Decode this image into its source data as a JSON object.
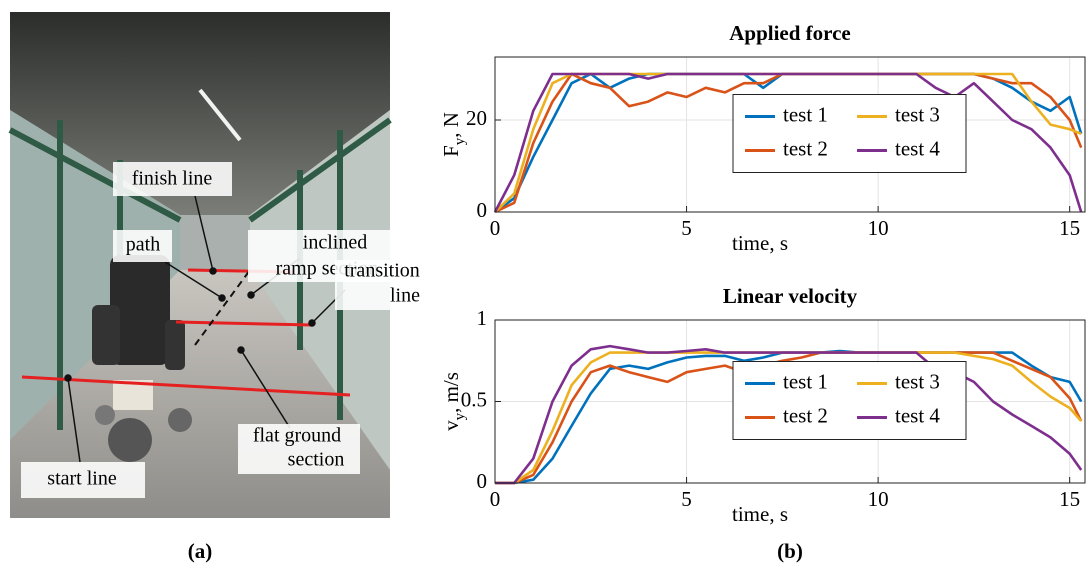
{
  "photo": {
    "labels": [
      {
        "lines": [
          "finish line"
        ]
      },
      {
        "lines": [
          "inclined",
          "ramp section"
        ]
      },
      {
        "lines": [
          "path"
        ]
      },
      {
        "lines": [
          "transition",
          "line"
        ]
      },
      {
        "lines": [
          "flat ground",
          "section"
        ]
      },
      {
        "lines": [
          "start line"
        ]
      }
    ]
  },
  "captions": [
    "(a)",
    "(b)"
  ],
  "chart_data": [
    {
      "type": "line",
      "title": "Applied force",
      "xlabel": "time, s",
      "ylabel": [
        "F",
        "y",
        ", N"
      ],
      "x": [
        0,
        0.5,
        1,
        1.5,
        2,
        2.5,
        3,
        3.5,
        4,
        4.5,
        5,
        5.5,
        6,
        6.5,
        7,
        7.5,
        8,
        8.5,
        9,
        9.5,
        10,
        10.5,
        11,
        11.5,
        12,
        12.5,
        13,
        13.5,
        14,
        14.5,
        15,
        15.3
      ],
      "xlim": [
        0,
        15.4
      ],
      "xticks": [
        0,
        5,
        10,
        15
      ],
      "ylim": [
        0,
        33.7
      ],
      "yticks": [
        0,
        20
      ],
      "grid": true,
      "series": [
        {
          "name": "test 1",
          "color": "#0072bd",
          "values": [
            0,
            3,
            12,
            20,
            28,
            30,
            27,
            29,
            30,
            30,
            30,
            30,
            30,
            30,
            27,
            30,
            30,
            30,
            30,
            30,
            30,
            30,
            30,
            30,
            30,
            30,
            29,
            27,
            24,
            22,
            25,
            17
          ]
        },
        {
          "name": "test 2",
          "color": "#d95319",
          "values": [
            0,
            2,
            15,
            24,
            30,
            28,
            27,
            23,
            24,
            26,
            25,
            27,
            26,
            28,
            28,
            30,
            30,
            30,
            30,
            30,
            30,
            30,
            30,
            30,
            30,
            30,
            29,
            28,
            28,
            25,
            20,
            14
          ]
        },
        {
          "name": "test 3",
          "color": "#edb120",
          "values": [
            0,
            4,
            18,
            28,
            30,
            30,
            30,
            30,
            30,
            30,
            30,
            30,
            30,
            30,
            30,
            30,
            30,
            30,
            30,
            30,
            30,
            30,
            30,
            30,
            30,
            30,
            30,
            30,
            24,
            19,
            18,
            17
          ]
        },
        {
          "name": "test 4",
          "color": "#7e2f8e",
          "values": [
            0,
            8,
            22,
            30,
            30,
            30,
            30,
            30,
            29,
            30,
            30,
            30,
            30,
            30,
            30,
            30,
            30,
            30,
            30,
            30,
            30,
            30,
            30,
            27,
            25,
            28,
            24,
            20,
            18,
            14,
            8,
            0
          ]
        }
      ]
    },
    {
      "type": "line",
      "title": "Linear velocity",
      "xlabel": "time, s",
      "ylabel": [
        "v",
        "y",
        ", m/s"
      ],
      "x": [
        0,
        0.5,
        1,
        1.5,
        2,
        2.5,
        3,
        3.5,
        4,
        4.5,
        5,
        5.5,
        6,
        6.5,
        7,
        7.5,
        8,
        8.5,
        9,
        9.5,
        10,
        10.5,
        11,
        11.5,
        12,
        12.5,
        13,
        13.5,
        14,
        14.5,
        15,
        15.3
      ],
      "xlim": [
        0,
        15.4
      ],
      "xticks": [
        0,
        5,
        10,
        15
      ],
      "ylim": [
        0,
        1
      ],
      "yticks": [
        0,
        0.5,
        1
      ],
      "grid": true,
      "series": [
        {
          "name": "test 1",
          "color": "#0072bd",
          "values": [
            0,
            0,
            0.02,
            0.15,
            0.35,
            0.55,
            0.7,
            0.72,
            0.7,
            0.74,
            0.77,
            0.78,
            0.78,
            0.75,
            0.77,
            0.8,
            0.8,
            0.8,
            0.81,
            0.8,
            0.8,
            0.8,
            0.8,
            0.8,
            0.8,
            0.8,
            0.8,
            0.8,
            0.72,
            0.65,
            0.62,
            0.5
          ]
        },
        {
          "name": "test 2",
          "color": "#d95319",
          "values": [
            0,
            0,
            0.05,
            0.25,
            0.5,
            0.68,
            0.72,
            0.68,
            0.65,
            0.62,
            0.68,
            0.7,
            0.72,
            0.68,
            0.72,
            0.75,
            0.77,
            0.8,
            0.8,
            0.8,
            0.8,
            0.8,
            0.8,
            0.8,
            0.8,
            0.8,
            0.8,
            0.75,
            0.7,
            0.65,
            0.52,
            0.38
          ]
        },
        {
          "name": "test 3",
          "color": "#edb120",
          "values": [
            0,
            0,
            0.08,
            0.32,
            0.6,
            0.74,
            0.8,
            0.8,
            0.8,
            0.8,
            0.8,
            0.8,
            0.8,
            0.8,
            0.8,
            0.8,
            0.8,
            0.8,
            0.8,
            0.8,
            0.8,
            0.8,
            0.8,
            0.8,
            0.8,
            0.78,
            0.76,
            0.72,
            0.62,
            0.53,
            0.46,
            0.38
          ]
        },
        {
          "name": "test 4",
          "color": "#7e2f8e",
          "values": [
            0,
            0,
            0.15,
            0.5,
            0.72,
            0.82,
            0.84,
            0.82,
            0.8,
            0.8,
            0.81,
            0.82,
            0.8,
            0.8,
            0.8,
            0.8,
            0.8,
            0.8,
            0.8,
            0.8,
            0.8,
            0.8,
            0.8,
            0.7,
            0.68,
            0.62,
            0.5,
            0.42,
            0.35,
            0.28,
            0.18,
            0.08
          ]
        }
      ]
    }
  ]
}
